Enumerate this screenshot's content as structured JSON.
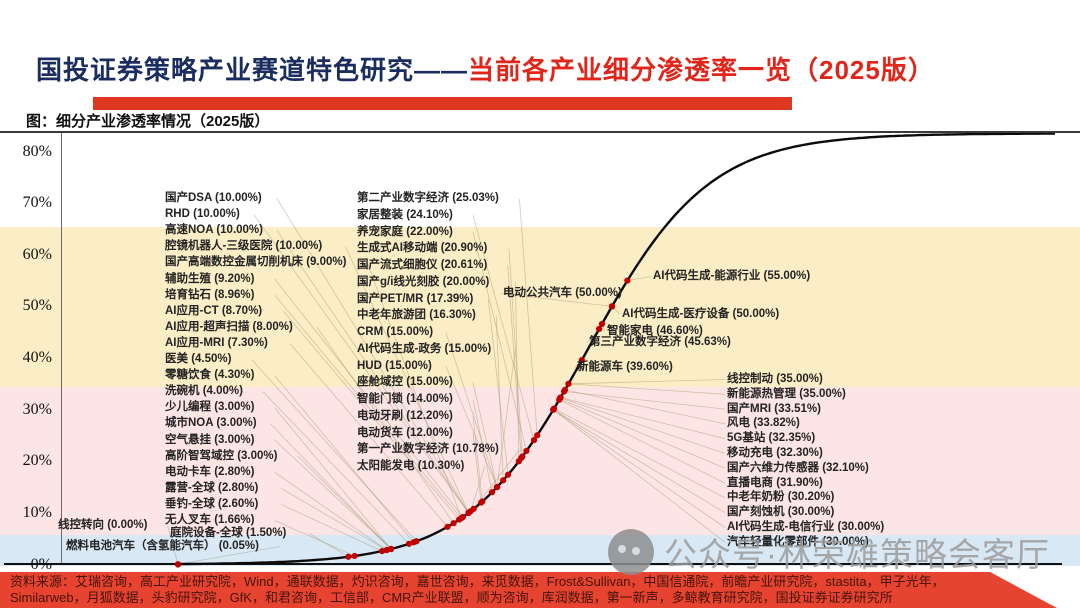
{
  "title": {
    "part1": "国投证券策略产业赛道特色研究——",
    "part2": "当前各产业细分渗透率一览（2025版）"
  },
  "figure_caption": "图：细分产业渗透率情况（2025版）",
  "y_axis": {
    "ticks": [
      {
        "label": "80%",
        "value": 80
      },
      {
        "label": "70%",
        "value": 70
      },
      {
        "label": "60%",
        "value": 60
      },
      {
        "label": "50%",
        "value": 50
      },
      {
        "label": "40%",
        "value": 40
      },
      {
        "label": "30%",
        "value": 30
      },
      {
        "label": "20%",
        "value": 20
      },
      {
        "label": "10%",
        "value": 10
      },
      {
        "label": "0%",
        "value": 0
      }
    ]
  },
  "watermark": {
    "icon": "chat-dots-icon",
    "text": "公众号·林荣雄策略会客厅"
  },
  "footer": {
    "line1": "资料来源：艾瑞咨询，高工产业研究院，Wind，通联数据，灼识咨询，嘉世咨询，来觅数据，Frost&Sullivan，中国信通院，前瞻产业研究院，stastita，甲子光年，",
    "line2": "Similarweb，月狐数据，头豹研究院，GfK，和君咨询，工信部，CMR产业联盟，顺为咨询，库润数据，第一新声，多鲸教育研究院，国投证券证券研究所"
  },
  "colors": {
    "title_navy": "#1b2c5f",
    "title_red": "#e0261a",
    "title_bar_red": "#de3822",
    "band_yellow": "#fbeec6",
    "band_pink": "#fce5e4",
    "band_blue": "#d9e8f5",
    "curve_black": "#0b0b0b",
    "dot_red": "#c00000",
    "footer_red": "#e64430"
  },
  "chart_data": {
    "type": "scatter",
    "curve": "logistic-s-curve",
    "title": "细分产业渗透率情况（2025版）",
    "xlabel": "",
    "ylabel": "渗透率",
    "ylim": [
      0,
      83.5
    ],
    "grid": false,
    "y_tick_percent": [
      0,
      10,
      20,
      30,
      40,
      50,
      60,
      70,
      80
    ],
    "bands_percent": [
      {
        "range": [
          0,
          5.8
        ],
        "color": "#d9e8f5"
      },
      {
        "range": [
          5.8,
          34.5
        ],
        "color": "#fce5e4"
      },
      {
        "range": [
          34.5,
          65.5
        ],
        "color": "#fbeec6"
      },
      {
        "range": [
          65.5,
          83.5
        ],
        "color": "#ffffff"
      }
    ],
    "points": [
      {
        "n": "国产DSA",
        "v": 10.0,
        "g": "A"
      },
      {
        "n": "RHD",
        "v": 10.0,
        "g": "A"
      },
      {
        "n": "高速NOA",
        "v": 10.0,
        "g": "A"
      },
      {
        "n": "腔镜机器人-三级医院",
        "v": 10.0,
        "g": "A"
      },
      {
        "n": "国产高端数控金属切削机床",
        "v": 9.0,
        "g": "A"
      },
      {
        "n": "辅助生殖",
        "v": 9.2,
        "g": "A"
      },
      {
        "n": "培育钻石",
        "v": 8.96,
        "g": "A"
      },
      {
        "n": "AI应用-CT",
        "v": 8.7,
        "g": "A"
      },
      {
        "n": "AI应用-超声扫描",
        "v": 8.0,
        "g": "A"
      },
      {
        "n": "AI应用-MRI",
        "v": 7.3,
        "g": "A"
      },
      {
        "n": "医美",
        "v": 4.5,
        "g": "A"
      },
      {
        "n": "零糖饮食",
        "v": 4.3,
        "g": "A"
      },
      {
        "n": "洗碗机",
        "v": 4.0,
        "g": "A"
      },
      {
        "n": "少儿编程",
        "v": 3.0,
        "g": "A"
      },
      {
        "n": "城市NOA",
        "v": 3.0,
        "g": "A"
      },
      {
        "n": "空气悬挂",
        "v": 3.0,
        "g": "A"
      },
      {
        "n": "高阶智驾域控",
        "v": 3.0,
        "g": "A"
      },
      {
        "n": "电动卡车",
        "v": 2.8,
        "g": "A"
      },
      {
        "n": "露营-全球",
        "v": 2.8,
        "g": "A"
      },
      {
        "n": "垂钓-全球",
        "v": 2.6,
        "g": "A"
      },
      {
        "n": "无人叉车",
        "v": 1.66,
        "g": "A"
      },
      {
        "n": "第二产业数字经济",
        "v": 25.03,
        "g": "B"
      },
      {
        "n": "家居整装",
        "v": 24.1,
        "g": "B"
      },
      {
        "n": "养宠家庭",
        "v": 22.0,
        "g": "B"
      },
      {
        "n": "生成式AI移动端",
        "v": 20.9,
        "g": "B"
      },
      {
        "n": "国产流式细胞仪",
        "v": 20.61,
        "g": "B"
      },
      {
        "n": "国产g/i线光刻胶",
        "v": 20.0,
        "g": "B"
      },
      {
        "n": "国产PET/MR",
        "v": 17.39,
        "g": "B"
      },
      {
        "n": "中老年旅游团",
        "v": 16.3,
        "g": "B"
      },
      {
        "n": "CRM",
        "v": 15.0,
        "g": "B"
      },
      {
        "n": "AI代码生成-政务",
        "v": 15.0,
        "g": "B"
      },
      {
        "n": "HUD",
        "v": 15.0,
        "g": "B"
      },
      {
        "n": "座舱域控",
        "v": 15.0,
        "g": "B"
      },
      {
        "n": "智能门锁",
        "v": 14.0,
        "g": "B"
      },
      {
        "n": "电动牙刷",
        "v": 12.2,
        "g": "B"
      },
      {
        "n": "电动货车",
        "v": 12.0,
        "g": "B"
      },
      {
        "n": "第一产业数字经济",
        "v": 10.78,
        "g": "B"
      },
      {
        "n": "太阳能发电",
        "v": 10.3,
        "g": "B"
      },
      {
        "n": "AI代码生成-能源行业",
        "v": 55.0,
        "g": "C"
      },
      {
        "n": "电动公共汽车",
        "v": 50.0,
        "g": "C"
      },
      {
        "n": "AI代码生成-医疗设备",
        "v": 50.0,
        "g": "C"
      },
      {
        "n": "智能家电",
        "v": 46.6,
        "g": "C"
      },
      {
        "n": "第三产业数字经济",
        "v": 45.63,
        "g": "C"
      },
      {
        "n": "新能源车",
        "v": 39.6,
        "g": "C"
      },
      {
        "n": "线控制动",
        "v": 35.0,
        "g": "D"
      },
      {
        "n": "新能源热管理",
        "v": 35.0,
        "g": "D"
      },
      {
        "n": "国产MRI",
        "v": 33.51,
        "g": "D"
      },
      {
        "n": "风电",
        "v": 33.82,
        "g": "D"
      },
      {
        "n": "5G基站",
        "v": 32.35,
        "g": "D"
      },
      {
        "n": "移动充电",
        "v": 32.3,
        "g": "D"
      },
      {
        "n": "国产六维力传感器",
        "v": 32.1,
        "g": "D"
      },
      {
        "n": "直播电商",
        "v": 31.9,
        "g": "D"
      },
      {
        "n": "中老年奶粉",
        "v": 30.2,
        "g": "D"
      },
      {
        "n": "国产刻蚀机",
        "v": 30.0,
        "g": "D"
      },
      {
        "n": "AI代码生成-电信行业",
        "v": 30.0,
        "g": "D"
      },
      {
        "n": "汽车轻量化零部件",
        "v": 30.0,
        "g": "D"
      },
      {
        "n": "线控转向",
        "v": 0.0,
        "g": "E"
      },
      {
        "n": "庭院设备-全球",
        "v": 1.5,
        "g": "E"
      },
      {
        "n": "燃料电池汽车（含氢能汽车）",
        "v": 0.05,
        "g": "E"
      }
    ]
  }
}
